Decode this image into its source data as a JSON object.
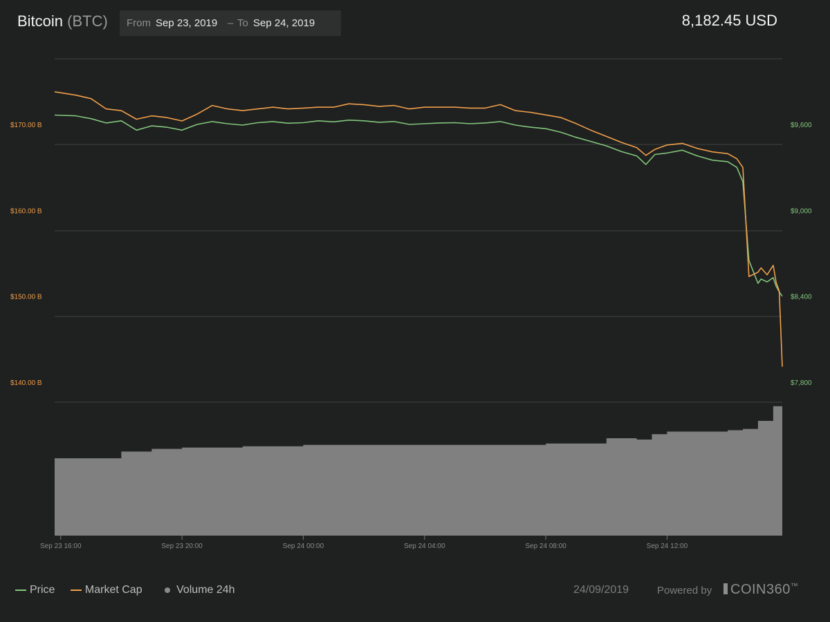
{
  "header": {
    "coin_name": "Bitcoin",
    "coin_symbol": "(BTC)",
    "range_from_label": "From",
    "range_from": "Sep 23, 2019",
    "range_sep": "–",
    "range_to_label": "To",
    "range_to": "Sep 24, 2019",
    "current_price": "8,182.45 USD"
  },
  "colors": {
    "price": "#82c77c",
    "market_cap": "#f0a04b",
    "volume": "#808080",
    "background": "#1f2020"
  },
  "legend": {
    "price": "Price",
    "market_cap": "Market Cap",
    "volume": "Volume 24h"
  },
  "footer": {
    "date": "24/09/2019",
    "powered_by": "Powered by",
    "brand": "COIN360",
    "brand_mark": "™"
  },
  "chart_data": {
    "type": "line",
    "x_ticks": [
      "Sep 23 16:00",
      "Sep 23 20:00",
      "Sep 24 00:00",
      "Sep 24 04:00",
      "Sep 24 08:00",
      "Sep 24 12:00"
    ],
    "x_tick_hours": [
      16,
      20,
      24,
      28,
      32,
      36
    ],
    "x_range_hours": [
      15.8,
      39.8
    ],
    "left_axis": {
      "ticks": [
        "$170.00 B",
        "$160.00 B",
        "$150.00 B",
        "$140.00 B"
      ],
      "tick_values": [
        170,
        160,
        150,
        140
      ],
      "unit": "USD billions"
    },
    "right_axis": {
      "ticks": [
        "$9,600",
        "$9,000",
        "$8,400",
        "$7,800"
      ],
      "tick_values": [
        9600,
        9000,
        8400,
        7800
      ],
      "unit": "USD"
    },
    "legend_position": "bottom-left",
    "grid": "horizontal",
    "series": [
      {
        "name": "Price",
        "axis": "right",
        "x": [
          15.8,
          16.5,
          17.0,
          17.5,
          18.0,
          18.5,
          19.0,
          19.5,
          20.0,
          20.5,
          21.0,
          21.5,
          22.0,
          22.5,
          23.0,
          23.5,
          24.0,
          24.5,
          25.0,
          25.5,
          26.0,
          26.5,
          27.0,
          27.5,
          28.0,
          28.5,
          29.0,
          29.5,
          30.0,
          30.5,
          31.0,
          31.5,
          32.0,
          32.5,
          33.0,
          33.5,
          34.0,
          34.5,
          35.0,
          35.3,
          35.6,
          36.0,
          36.5,
          37.0,
          37.5,
          38.0,
          38.3,
          38.5,
          38.7,
          39.0,
          39.1,
          39.3,
          39.5,
          39.6,
          39.7,
          39.8
        ],
        "values": [
          9665,
          9660,
          9640,
          9610,
          9625,
          9560,
          9590,
          9580,
          9560,
          9600,
          9620,
          9605,
          9595,
          9612,
          9620,
          9608,
          9612,
          9625,
          9618,
          9630,
          9625,
          9615,
          9620,
          9600,
          9605,
          9610,
          9612,
          9605,
          9610,
          9620,
          9595,
          9580,
          9570,
          9545,
          9510,
          9480,
          9450,
          9410,
          9380,
          9320,
          9390,
          9400,
          9420,
          9380,
          9350,
          9340,
          9300,
          9200,
          8650,
          8490,
          8520,
          8500,
          8530,
          8470,
          8430,
          8400
        ]
      },
      {
        "name": "Market Cap",
        "axis": "left",
        "x": [
          15.8,
          16.5,
          17.0,
          17.5,
          18.0,
          18.5,
          19.0,
          19.5,
          20.0,
          20.5,
          21.0,
          21.5,
          22.0,
          22.5,
          23.0,
          23.5,
          24.0,
          24.5,
          25.0,
          25.5,
          26.0,
          26.5,
          27.0,
          27.5,
          28.0,
          28.5,
          29.0,
          29.5,
          30.0,
          30.5,
          31.0,
          31.5,
          32.0,
          32.5,
          33.0,
          33.5,
          34.0,
          34.5,
          35.0,
          35.3,
          35.6,
          36.0,
          36.5,
          37.0,
          37.5,
          38.0,
          38.3,
          38.5,
          38.7,
          39.0,
          39.1,
          39.3,
          39.5,
          39.6,
          39.7,
          39.8
        ],
        "values": [
          173.8,
          173.4,
          173.0,
          171.8,
          171.6,
          170.6,
          171.0,
          170.8,
          170.4,
          171.2,
          172.2,
          171.8,
          171.6,
          171.8,
          172.0,
          171.8,
          171.9,
          172.0,
          172.0,
          172.4,
          172.3,
          172.1,
          172.2,
          171.8,
          172.0,
          172.0,
          172.0,
          171.9,
          171.9,
          172.3,
          171.6,
          171.4,
          171.1,
          170.8,
          170.1,
          169.3,
          168.6,
          167.9,
          167.3,
          166.4,
          167.1,
          167.6,
          167.8,
          167.2,
          166.8,
          166.6,
          166.0,
          165.0,
          152.3,
          152.8,
          153.3,
          152.5,
          153.6,
          151.6,
          150.6,
          141.8
        ]
      }
    ],
    "volume": {
      "name": "Volume 24h",
      "x": [
        15.8,
        17.0,
        18.0,
        19.0,
        20.0,
        21.0,
        22.0,
        24.0,
        26.0,
        28.0,
        30.0,
        32.0,
        33.0,
        34.0,
        35.0,
        35.5,
        36.0,
        37.0,
        38.0,
        38.5,
        39.0,
        39.5,
        39.8
      ],
      "relative_level": [
        0.58,
        0.58,
        0.63,
        0.65,
        0.66,
        0.66,
        0.67,
        0.68,
        0.68,
        0.68,
        0.68,
        0.69,
        0.69,
        0.73,
        0.72,
        0.76,
        0.78,
        0.78,
        0.79,
        0.8,
        0.86,
        0.97,
        0.98
      ]
    }
  }
}
